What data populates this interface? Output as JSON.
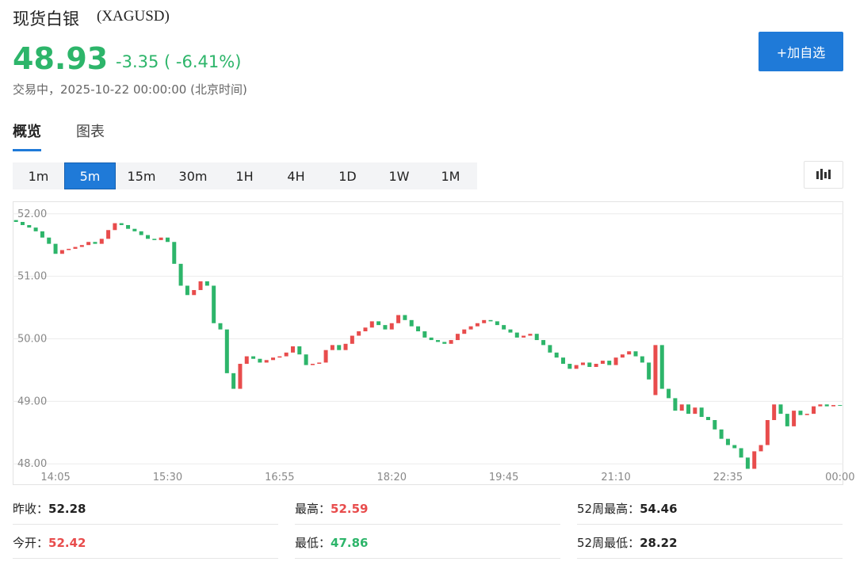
{
  "header": {
    "title": "现货白银",
    "symbol": "(XAGUSD)",
    "price": "48.93",
    "change": "-3.35",
    "change_pct": "( -6.41%)",
    "status": "交易中，",
    "time": "2025-10-22 00:00:00",
    "timezone": "(北京时间)",
    "button": "+加自选"
  },
  "tabs": [
    "概览",
    "图表"
  ],
  "active_tab": 0,
  "periods": [
    "1m",
    "5m",
    "15m",
    "30m",
    "1H",
    "4H",
    "1D",
    "1W",
    "1M"
  ],
  "active_period": 1,
  "chart_data": {
    "type": "candlestick",
    "up_color": "#e84c4c",
    "down_color": "#2db56a",
    "grid": true,
    "ylim": [
      47.66,
      52.2
    ],
    "yticks": [
      {
        "value": 48,
        "label": "48.00"
      },
      {
        "value": 49,
        "label": "49.00"
      },
      {
        "value": 50,
        "label": "50.00"
      },
      {
        "value": 51,
        "label": "51.00"
      },
      {
        "value": 52,
        "label": "52.00"
      }
    ],
    "categories": [
      null,
      null,
      null,
      null,
      null,
      null,
      "14:05",
      null,
      null,
      null,
      null,
      null,
      null,
      null,
      null,
      null,
      null,
      null,
      null,
      null,
      null,
      null,
      null,
      "15:30",
      null,
      null,
      null,
      null,
      null,
      null,
      null,
      null,
      null,
      null,
      null,
      null,
      null,
      null,
      null,
      null,
      "16:55",
      null,
      null,
      null,
      null,
      null,
      null,
      null,
      null,
      null,
      null,
      null,
      null,
      null,
      null,
      null,
      null,
      "18:20",
      null,
      null,
      null,
      null,
      null,
      null,
      null,
      null,
      null,
      null,
      null,
      null,
      null,
      null,
      null,
      null,
      "19:45",
      null,
      null,
      null,
      null,
      null,
      null,
      null,
      null,
      null,
      null,
      null,
      null,
      null,
      null,
      null,
      null,
      "21:10",
      null,
      null,
      null,
      null,
      null,
      null,
      null,
      null,
      null,
      null,
      null,
      null,
      null,
      null,
      null,
      null,
      "22:35",
      null,
      null,
      null,
      null,
      null,
      null,
      null,
      null,
      null,
      null,
      null,
      null,
      null,
      null,
      null,
      null,
      "00:00"
    ],
    "open": [
      51.9,
      51.87,
      51.82,
      51.78,
      51.72,
      51.62,
      51.52,
      51.36,
      51.42,
      51.44,
      51.47,
      51.5,
      51.55,
      51.52,
      51.6,
      51.74,
      51.85,
      51.82,
      51.76,
      51.72,
      51.66,
      51.6,
      51.58,
      51.62,
      51.55,
      51.2,
      50.85,
      50.7,
      50.78,
      50.92,
      50.85,
      50.25,
      50.15,
      49.45,
      49.2,
      49.6,
      49.72,
      49.68,
      49.62,
      49.66,
      49.7,
      49.72,
      49.78,
      49.88,
      49.75,
      49.58,
      49.6,
      49.62,
      49.82,
      49.9,
      49.82,
      49.92,
      50.05,
      50.12,
      50.18,
      50.28,
      50.22,
      50.15,
      50.25,
      50.38,
      50.3,
      50.2,
      50.12,
      50.02,
      49.98,
      49.95,
      49.92,
      49.98,
      50.08,
      50.15,
      50.2,
      50.25,
      50.3,
      50.28,
      50.22,
      50.15,
      50.1,
      50.02,
      50.05,
      50.08,
      49.98,
      49.9,
      49.78,
      49.7,
      49.6,
      49.52,
      49.58,
      49.62,
      49.55,
      49.6,
      49.65,
      49.58,
      49.7,
      49.75,
      49.8,
      49.72,
      49.62,
      49.1,
      49.9,
      49.2,
      49.05,
      48.85,
      48.95,
      48.8,
      48.9,
      48.75,
      48.7,
      48.55,
      48.4,
      48.3,
      48.25,
      48.1,
      47.92,
      48.2,
      48.3,
      48.7,
      48.95,
      48.8,
      48.6,
      48.85,
      48.78,
      48.8,
      48.92,
      48.95,
      48.92,
      48.94
    ],
    "close": [
      51.87,
      51.82,
      51.78,
      51.72,
      51.62,
      51.52,
      51.36,
      51.42,
      51.44,
      51.47,
      51.5,
      51.55,
      51.52,
      51.6,
      51.74,
      51.85,
      51.82,
      51.76,
      51.72,
      51.66,
      51.6,
      51.58,
      51.62,
      51.55,
      51.2,
      50.85,
      50.7,
      50.78,
      50.92,
      50.85,
      50.25,
      50.15,
      49.45,
      49.2,
      49.6,
      49.72,
      49.68,
      49.62,
      49.66,
      49.7,
      49.72,
      49.78,
      49.88,
      49.75,
      49.58,
      49.6,
      49.62,
      49.82,
      49.9,
      49.82,
      49.92,
      50.05,
      50.12,
      50.18,
      50.28,
      50.22,
      50.15,
      50.25,
      50.38,
      50.3,
      50.2,
      50.12,
      50.02,
      49.98,
      49.95,
      49.92,
      49.98,
      50.08,
      50.15,
      50.2,
      50.25,
      50.3,
      50.28,
      50.22,
      50.15,
      50.1,
      50.02,
      50.05,
      50.08,
      49.98,
      49.9,
      49.78,
      49.7,
      49.6,
      49.52,
      49.58,
      49.62,
      49.55,
      49.6,
      49.65,
      49.58,
      49.7,
      49.75,
      49.8,
      49.72,
      49.62,
      49.35,
      49.9,
      49.2,
      49.05,
      48.85,
      48.95,
      48.8,
      48.9,
      48.75,
      48.7,
      48.55,
      48.4,
      48.3,
      48.25,
      48.1,
      47.92,
      48.2,
      48.3,
      48.7,
      48.95,
      48.8,
      48.6,
      48.85,
      48.78,
      48.8,
      48.92,
      48.95,
      48.92,
      48.94,
      48.93
    ]
  },
  "stats": [
    [
      {
        "label": "昨收：",
        "value": "52.28",
        "color": "#222"
      },
      {
        "label": "最高：",
        "value": "52.59",
        "color": "#e84c4c"
      },
      {
        "label": "52周最高：",
        "value": "54.46",
        "color": "#222"
      }
    ],
    [
      {
        "label": "今开：",
        "value": "52.42",
        "color": "#e84c4c"
      },
      {
        "label": "最低：",
        "value": "47.86",
        "color": "#2db56a"
      },
      {
        "label": "52周最低：",
        "value": "28.22",
        "color": "#222"
      }
    ]
  ]
}
